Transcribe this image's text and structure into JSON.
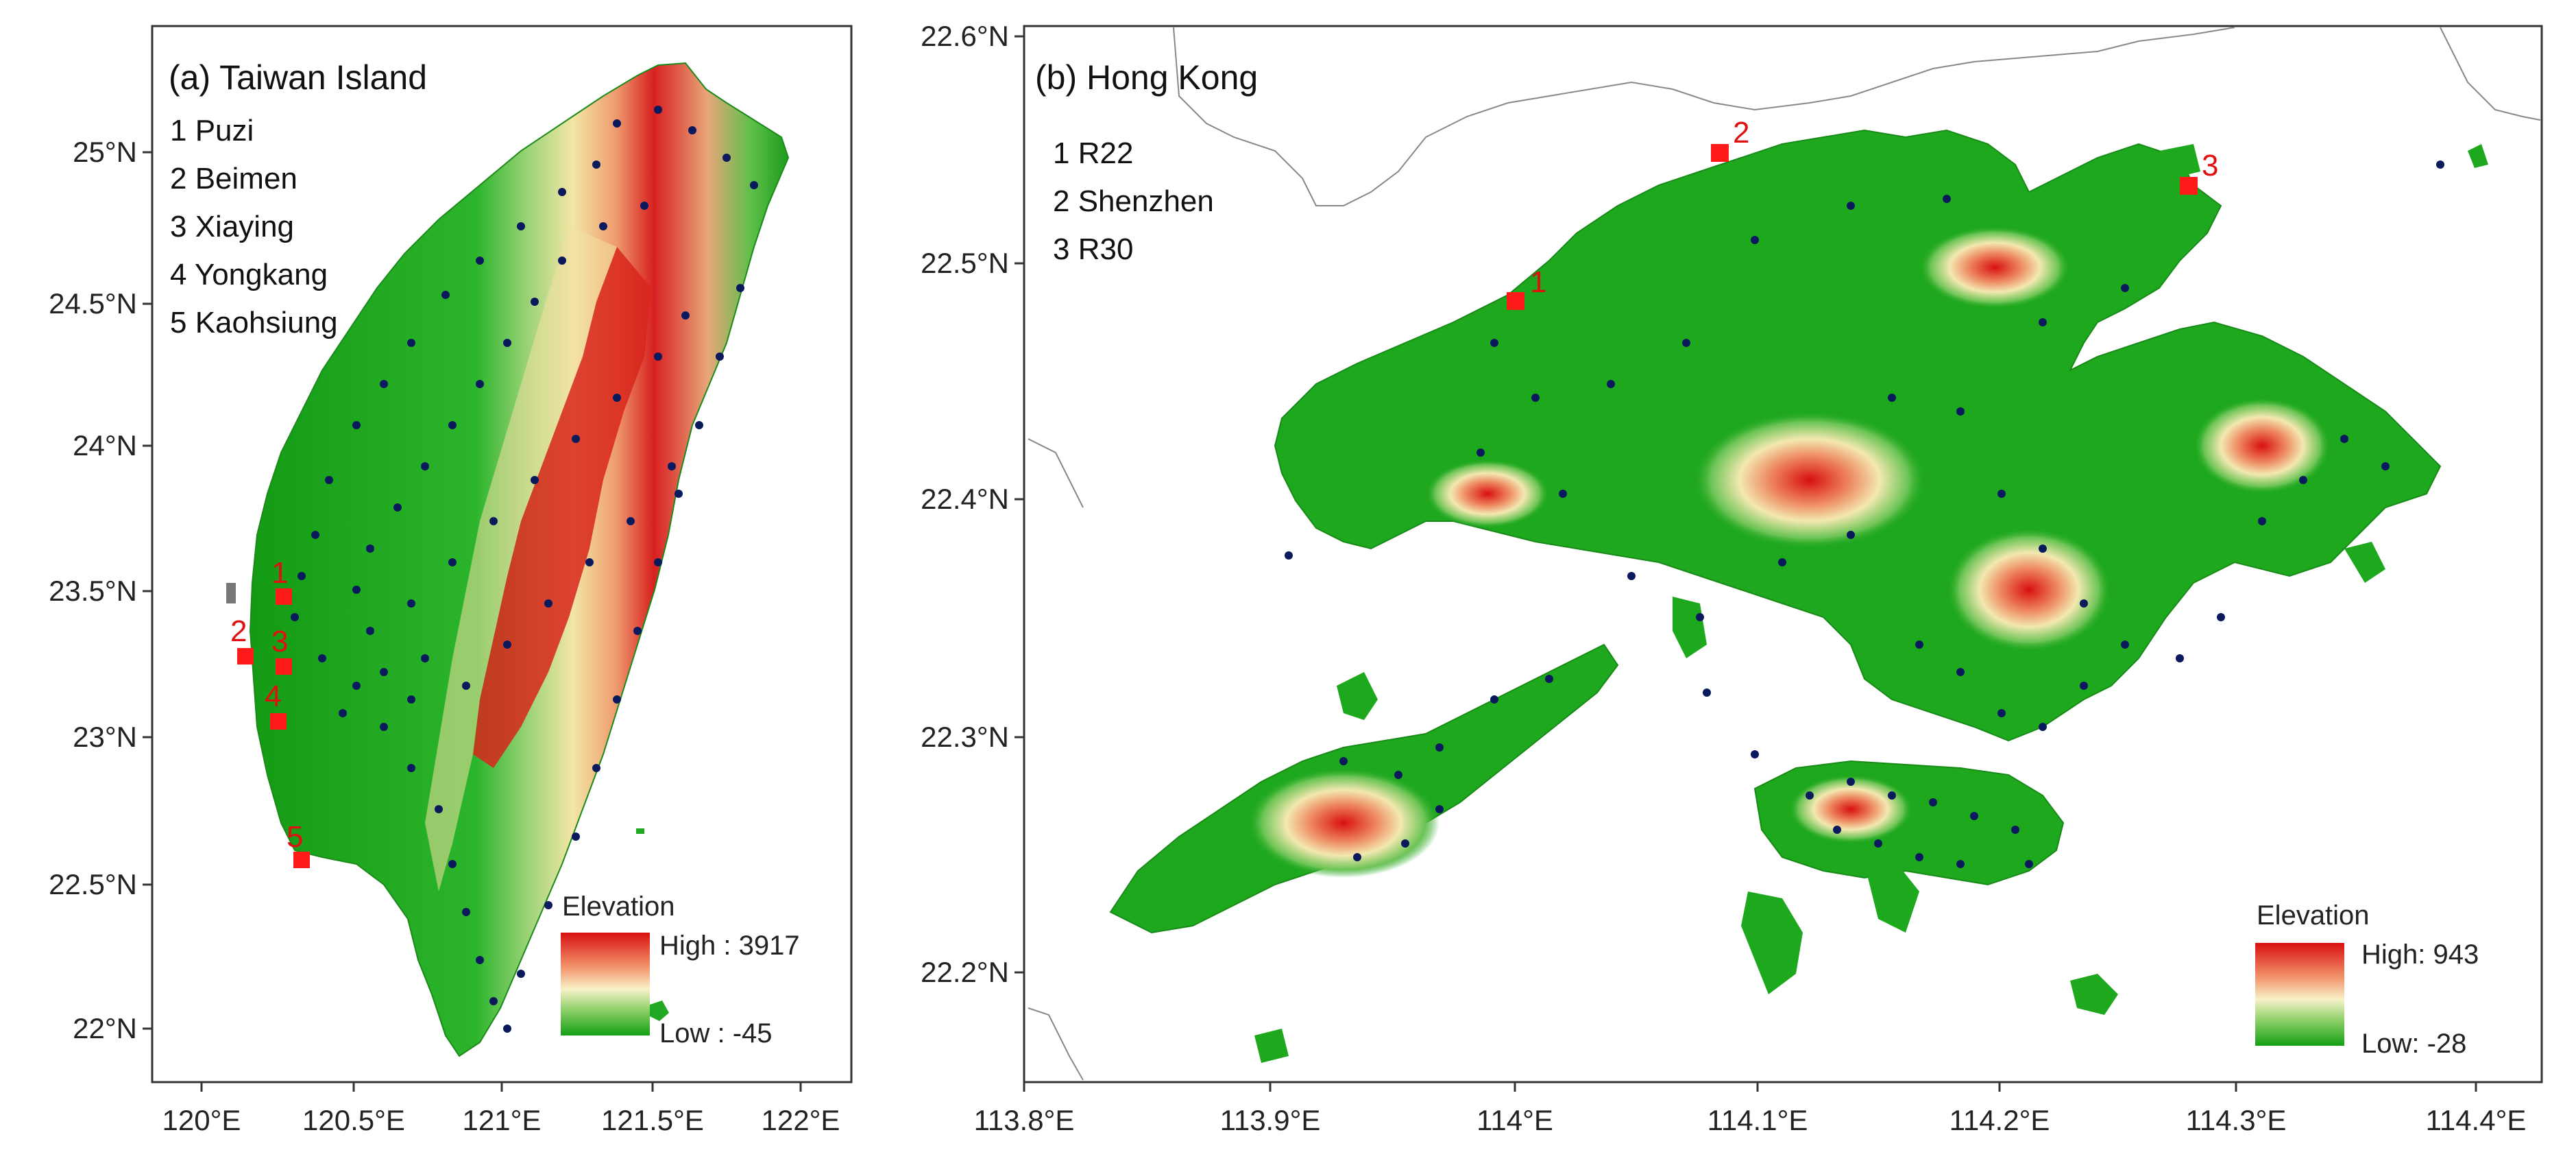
{
  "panel_a": {
    "title": "(a) Taiwan Island",
    "stations": [
      {
        "label": "1 Puzi",
        "num": "1"
      },
      {
        "label": "2 Beimen",
        "num": "2"
      },
      {
        "label": "3 Xiaying",
        "num": "3"
      },
      {
        "label": "4 Yongkang",
        "num": "4"
      },
      {
        "label": "5 Kaohsiung",
        "num": "5"
      }
    ],
    "x_ticks": [
      "120°E",
      "120.5°E",
      "121°E",
      "121.5°E",
      "122°E"
    ],
    "y_ticks": [
      "25°N",
      "24.5°N",
      "24°N",
      "23.5°N",
      "23°N",
      "22.5°N",
      "22°N"
    ],
    "elevation": {
      "title": "Elevation",
      "high": "High : 3917",
      "low": "Low : -45"
    }
  },
  "panel_b": {
    "title": "(b) Hong Kong",
    "stations": [
      {
        "label": "1 R22",
        "num": "1"
      },
      {
        "label": "2 Shenzhen",
        "num": "2"
      },
      {
        "label": "3 R30",
        "num": "3"
      }
    ],
    "x_ticks": [
      "113.8°E",
      "113.9°E",
      "114°E",
      "114.1°E",
      "114.2°E",
      "114.3°E",
      "114.4°E"
    ],
    "y_ticks": [
      "22.6°N",
      "22.5°N",
      "22.4°N",
      "22.3°N",
      "22.2°N"
    ],
    "elevation": {
      "title": "Elevation",
      "high": "High: 943",
      "low": "Low: -28"
    }
  },
  "colors": {
    "low": "#14a014",
    "mid": "#f5f0b8",
    "high": "#d81010",
    "station_marker": "#ff1a1a",
    "gauge_dot": "#0a1a5c"
  }
}
